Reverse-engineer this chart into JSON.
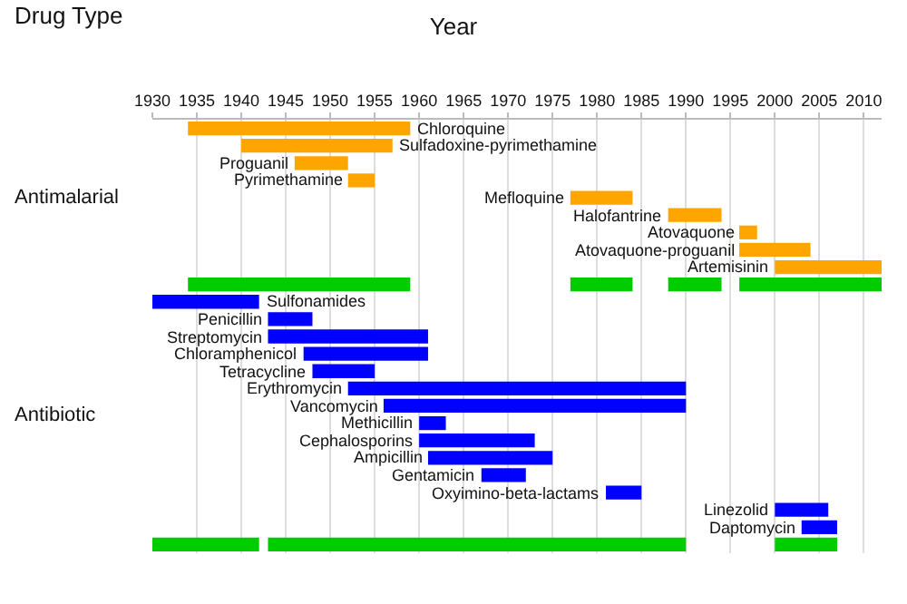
{
  "chart_data": {
    "type": "bar",
    "orientation": "horizontal",
    "title": "Year",
    "ylabel": "Drug Type",
    "categories": [
      "Chloroquine",
      "Sulfadoxine-pyrimethamine",
      "Proguanil",
      "Pyrimethamine",
      "Mefloquine",
      "Halofantrine",
      "Atovaquone",
      "Atovaquone-proguanil",
      "Artemisinin",
      null,
      "Sulfonamides",
      "Penicillin",
      "Streptomycin",
      "Chloramphenicol",
      "Tetracycline",
      "Erythromycin",
      "Vancomycin",
      "Methicillin",
      "Cephalosporins",
      "Ampicillin",
      "Gentamicin",
      "Oxyimino-beta-lactams",
      "Linezolid",
      "Daptomycin",
      null
    ],
    "series": [
      {
        "color": "#ffa500",
        "base": [
          1934,
          1940,
          1946,
          1952,
          1977,
          1988,
          1996,
          1996,
          2000,
          null,
          null,
          null,
          null,
          null,
          null,
          null,
          null,
          null,
          null,
          null,
          null,
          null,
          null,
          null,
          null
        ],
        "values": [
          25,
          17,
          6,
          3,
          7,
          6,
          2,
          8,
          12,
          null,
          null,
          null,
          null,
          null,
          null,
          null,
          null,
          null,
          null,
          null,
          null,
          null,
          null,
          null,
          null
        ]
      },
      {
        "color": "#0000ff",
        "base": [
          null,
          null,
          null,
          null,
          null,
          null,
          null,
          null,
          null,
          null,
          1930,
          1943,
          1943,
          1947,
          1948,
          1952,
          1956,
          1960,
          1960,
          1961,
          1967,
          1981,
          2000,
          2003,
          null
        ],
        "values": [
          null,
          null,
          null,
          null,
          null,
          null,
          null,
          null,
          null,
          null,
          12,
          5,
          18,
          14,
          7,
          38,
          34,
          3,
          13,
          14,
          5,
          4,
          6,
          4,
          null
        ]
      },
      {
        "color": "#00cc00",
        "base": [
          null,
          null,
          null,
          null,
          null,
          null,
          null,
          null,
          null,
          1934,
          null,
          null,
          null,
          null,
          null,
          null,
          null,
          null,
          null,
          null,
          null,
          null,
          null,
          null,
          1930
        ],
        "values": [
          null,
          null,
          null,
          null,
          null,
          null,
          null,
          null,
          null,
          25,
          null,
          null,
          null,
          null,
          null,
          null,
          null,
          null,
          null,
          null,
          null,
          null,
          null,
          null,
          12
        ]
      },
      {
        "color": "#00cc00",
        "base": [
          null,
          null,
          null,
          null,
          null,
          null,
          null,
          null,
          null,
          1977,
          null,
          null,
          null,
          null,
          null,
          null,
          null,
          null,
          null,
          null,
          null,
          null,
          null,
          null,
          1943
        ],
        "values": [
          null,
          null,
          null,
          null,
          null,
          null,
          null,
          null,
          null,
          7,
          null,
          null,
          null,
          null,
          null,
          null,
          null,
          null,
          null,
          null,
          null,
          null,
          null,
          null,
          47
        ]
      },
      {
        "color": "#00cc00",
        "base": [
          null,
          null,
          null,
          null,
          null,
          null,
          null,
          null,
          null,
          1988,
          null,
          null,
          null,
          null,
          null,
          null,
          null,
          null,
          null,
          null,
          null,
          null,
          null,
          null,
          2000
        ],
        "values": [
          null,
          null,
          null,
          null,
          null,
          null,
          null,
          null,
          null,
          6,
          null,
          null,
          null,
          null,
          null,
          null,
          null,
          null,
          null,
          null,
          null,
          null,
          null,
          null,
          7
        ]
      },
      {
        "color": "#00cc00",
        "base": [
          null,
          null,
          null,
          null,
          null,
          null,
          null,
          null,
          null,
          1996,
          null,
          null,
          null,
          null,
          null,
          null,
          null,
          null,
          null,
          null,
          null,
          null,
          null,
          null,
          null
        ],
        "values": [
          null,
          null,
          null,
          null,
          null,
          null,
          null,
          null,
          null,
          16,
          null,
          null,
          null,
          null,
          null,
          null,
          null,
          null,
          null,
          null,
          null,
          null,
          null,
          null,
          null
        ]
      }
    ],
    "annotations": [
      "Antimalarial",
      "Antibiotic"
    ],
    "xlim": [
      1930,
      2012
    ],
    "xticks": [
      1930,
      1935,
      1940,
      1945,
      1950,
      1955,
      1960,
      1965,
      1970,
      1975,
      1980,
      1985,
      1990,
      1995,
      2000,
      2005,
      2010
    ],
    "grid": "x",
    "tick_labels": "x"
  }
}
